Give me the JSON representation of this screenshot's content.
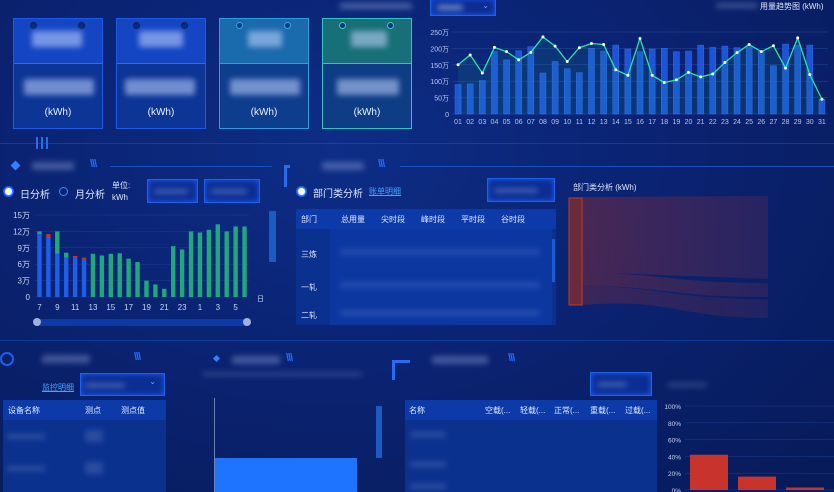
{
  "cards": [
    {
      "unit": "(kWh)",
      "color": "#1446c4",
      "border": "#1d5be6"
    },
    {
      "unit": "(kWh)",
      "color": "#1446c4",
      "border": "#1d5be6"
    },
    {
      "unit": "(kWh)",
      "color": "#1a6aae",
      "border": "#2a9fe0"
    },
    {
      "unit": "(kWh)",
      "color": "#177078",
      "border": "#2ac6c6"
    }
  ],
  "trend": {
    "title": "用量趋势图 (kWh)"
  },
  "load": {
    "radio_day": "日分析",
    "radio_month": "月分析",
    "unit_label": "单位:",
    "unit": "kWh",
    "selected": "day"
  },
  "usage": {
    "radio_dept": "部门类分析",
    "bill_link": "账单明细",
    "columns": [
      "部门",
      "总用量",
      "尖时段",
      "峰时段",
      "平时段",
      "谷时段"
    ],
    "rows": [
      "三炼",
      "一轧",
      "二轧"
    ],
    "sankey_title": "部门类分析 (kWh)"
  },
  "monitor": {
    "link": "监控明细",
    "columns": [
      "设备名称",
      "测点",
      "测点值"
    ]
  },
  "transformer": {
    "columns": [
      "名称",
      "空载(...",
      "轻载(...",
      "正常(...",
      "重载(...",
      "过载(..."
    ]
  },
  "chart_data": [
    {
      "type": "bar+line",
      "title": "用量趋势图 (kWh)",
      "categories": [
        "01",
        "02",
        "03",
        "04",
        "05",
        "06",
        "07",
        "08",
        "09",
        "10",
        "11",
        "12",
        "13",
        "14",
        "15",
        "16",
        "17",
        "18",
        "19",
        "20",
        "21",
        "22",
        "23",
        "24",
        "25",
        "26",
        "27",
        "28",
        "29",
        "30",
        "31"
      ],
      "series": [
        {
          "type": "bar",
          "values": [
            90,
            92,
            102,
            190,
            165,
            193,
            205,
            125,
            160,
            138,
            126,
            200,
            192,
            210,
            198,
            190,
            198,
            200,
            190,
            192,
            210,
            203,
            207,
            202,
            205,
            190,
            147,
            213,
            210,
            210,
            45
          ]
        },
        {
          "type": "line",
          "values": [
            150,
            180,
            125,
            203,
            190,
            165,
            188,
            235,
            207,
            160,
            202,
            215,
            212,
            135,
            118,
            230,
            118,
            96,
            104,
            127,
            113,
            122,
            157,
            187,
            212,
            190,
            208,
            140,
            232,
            120,
            45
          ]
        }
      ],
      "yticks": [
        "0",
        "50万",
        "100万",
        "150万",
        "200万",
        "250万"
      ],
      "ylim": [
        0,
        250
      ],
      "grid": true,
      "colors": {
        "bar": "#1f5ee8",
        "line": "#27e6a8"
      }
    },
    {
      "type": "stacked-bar",
      "categories": [
        "7",
        "8",
        "9",
        "10",
        "11",
        "12",
        "13",
        "14",
        "15",
        "16",
        "17",
        "18",
        "19",
        "20",
        "21",
        "22",
        "23",
        "24",
        "1",
        "2",
        "3",
        "4",
        "5",
        "6"
      ],
      "xtick_labels": [
        "7",
        "9",
        "11",
        "13",
        "15",
        "17",
        "19",
        "21",
        "23",
        "1",
        "3",
        "5"
      ],
      "xlabel": "日",
      "series": [
        {
          "color": "#1e5ee8",
          "values": [
            11.5,
            10.8,
            7.9,
            7.2,
            7.2,
            6.9,
            0,
            0,
            0,
            0,
            0,
            0,
            0,
            0,
            0,
            0,
            0,
            0,
            0,
            0,
            0,
            0,
            0,
            0
          ]
        },
        {
          "color": "#c0392b",
          "values": [
            0,
            0.7,
            0,
            0,
            0.3,
            0.3,
            0,
            0,
            0,
            0,
            0,
            0,
            0,
            0,
            0,
            0,
            0,
            0,
            0,
            0,
            0,
            0,
            0,
            0
          ]
        },
        {
          "color": "#1fa879",
          "values": [
            0.5,
            0,
            4.1,
            0.9,
            0,
            0,
            7.9,
            7.6,
            7.9,
            8.0,
            7.0,
            6.4,
            3.0,
            2.3,
            1.5,
            9.3,
            8.7,
            12.0,
            11.8,
            12.3,
            13.3,
            12.0,
            12.9,
            12.9
          ]
        }
      ],
      "yticks": [
        "0",
        "3万",
        "6万",
        "9万",
        "12万",
        "15万"
      ],
      "ylim": [
        0,
        15
      ]
    },
    {
      "type": "bar",
      "values": [
        42,
        16,
        3
      ],
      "yticks": [
        "0%",
        "20%",
        "40%",
        "60%",
        "80%",
        "100%"
      ],
      "ylim": [
        0,
        100
      ],
      "color": "#c8342c"
    }
  ]
}
